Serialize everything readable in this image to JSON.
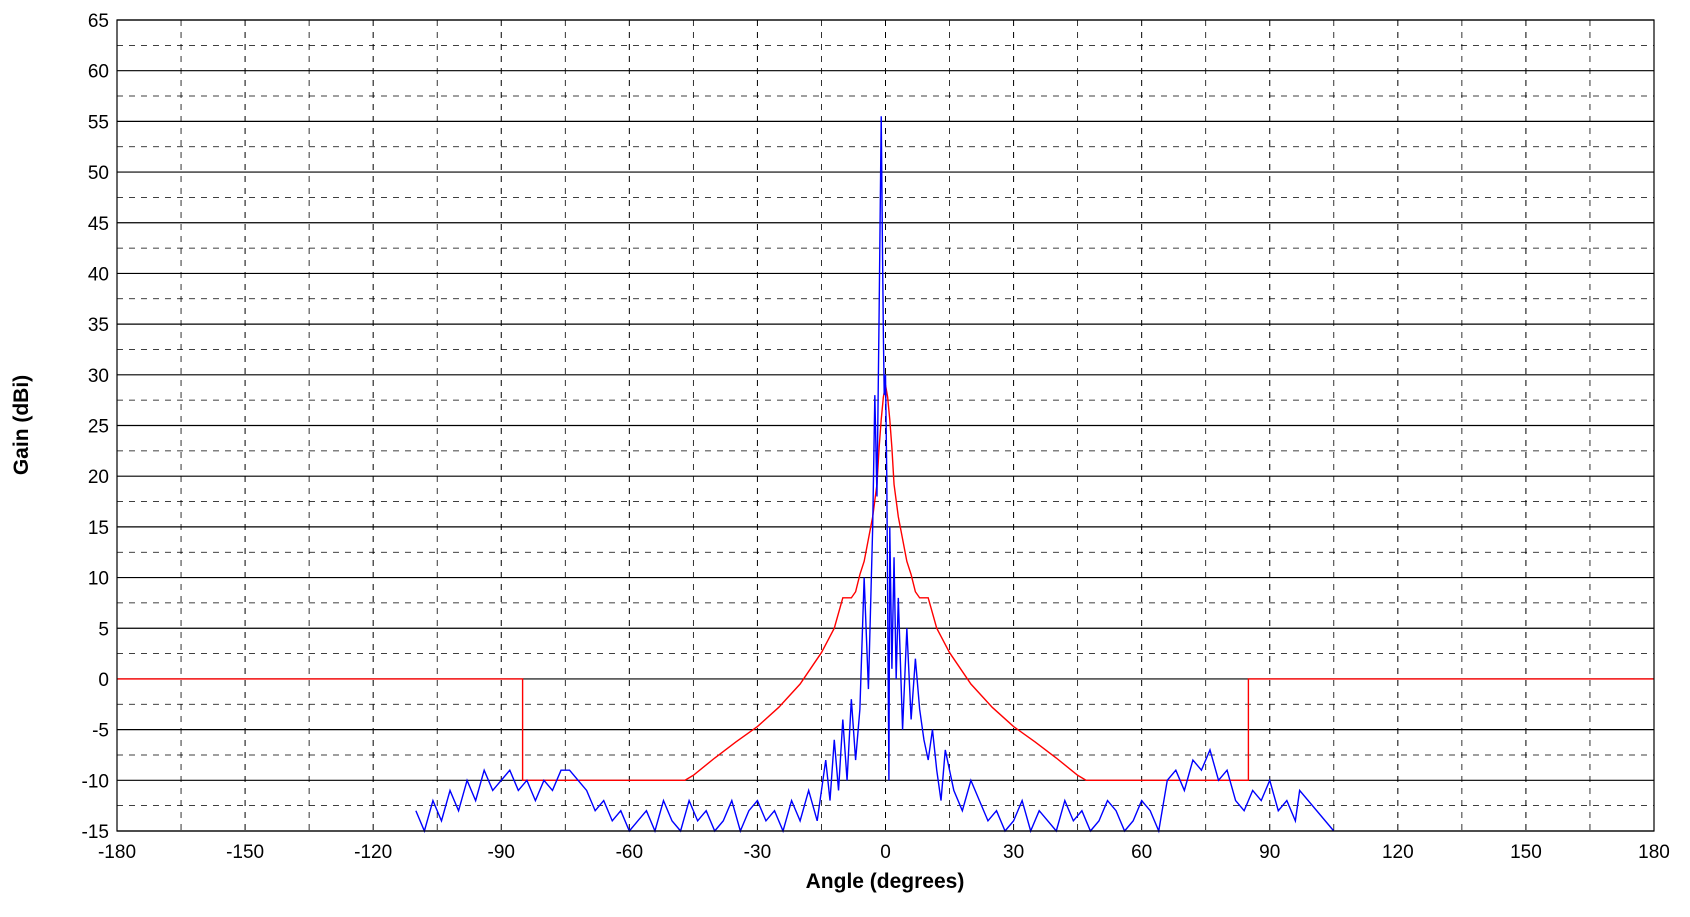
{
  "chart_data": {
    "type": "line",
    "title": "",
    "xlabel": "Angle (degrees)",
    "ylabel": "Gain (dBi)",
    "xlim": [
      -180,
      180
    ],
    "ylim": [
      -15,
      65
    ],
    "xticks": [
      -180,
      -150,
      -120,
      -90,
      -60,
      -30,
      0,
      30,
      60,
      90,
      120,
      150,
      180
    ],
    "yticks": [
      -15,
      -10,
      -5,
      0,
      5,
      10,
      15,
      20,
      25,
      30,
      35,
      40,
      45,
      50,
      55,
      60,
      65
    ],
    "grid": true,
    "series": [
      {
        "color": "#ff0000",
        "x": [
          -180,
          -85,
          -85,
          -80,
          -75,
          -70,
          -65,
          -60,
          -55,
          -50,
          -47,
          -45,
          -40,
          -35,
          -30,
          -25,
          -20,
          -15,
          -12,
          -10,
          -8,
          -7,
          -6,
          -5,
          -4,
          -3,
          -2,
          -1.5,
          -1,
          -0.5,
          0,
          0.5,
          1,
          1.5,
          2,
          3,
          4,
          5,
          6,
          7,
          8,
          10,
          12,
          15,
          20,
          25,
          30,
          35,
          40,
          45,
          47,
          50,
          55,
          60,
          65,
          70,
          75,
          80,
          85,
          85,
          180
        ],
        "y": [
          0,
          0,
          -10,
          -10,
          -10,
          -10,
          -10,
          -10,
          -10,
          -10,
          -10,
          -9.5,
          -7.8,
          -6.2,
          -4.7,
          -2.8,
          -0.5,
          2.6,
          5.0,
          8,
          8,
          8.6,
          10.3,
          11.6,
          13.8,
          16.0,
          19.2,
          22.8,
          25.6,
          27.8,
          29.0,
          27.8,
          25.6,
          22.8,
          19.2,
          16.0,
          13.8,
          11.6,
          10.3,
          8.6,
          8,
          8,
          5.0,
          2.6,
          -0.5,
          -2.8,
          -4.7,
          -6.2,
          -7.8,
          -9.5,
          -10,
          -10,
          -10,
          -10,
          -10,
          -10,
          -10,
          -10,
          -10,
          0,
          0
        ]
      },
      {
        "color": "#0000ff",
        "x": [
          -110,
          -108,
          -106,
          -104,
          -102,
          -100,
          -98,
          -96,
          -94,
          -92,
          -90,
          -88,
          -86,
          -84,
          -82,
          -80,
          -78,
          -76,
          -74,
          -72,
          -70,
          -68,
          -66,
          -64,
          -62,
          -60,
          -58,
          -56,
          -54,
          -52,
          -50,
          -48,
          -46,
          -44,
          -42,
          -40,
          -38,
          -36,
          -34,
          -32,
          -30,
          -28,
          -26,
          -24,
          -22,
          -20,
          -18,
          -16,
          -14,
          -13,
          -12,
          -11,
          -10,
          -9,
          -8,
          -7,
          -6,
          -5,
          -4,
          -3,
          -2.5,
          -2,
          -1.5,
          -1,
          -0.7,
          -0.5,
          -0.3,
          0,
          0.3,
          0.5,
          0.8,
          1,
          1.5,
          2,
          2.5,
          3,
          4,
          5,
          6,
          7,
          8,
          9,
          10,
          11,
          12,
          13,
          14,
          16,
          18,
          20,
          22,
          24,
          26,
          28,
          30,
          32,
          34,
          36,
          38,
          40,
          42,
          44,
          46,
          48,
          50,
          52,
          54,
          56,
          58,
          60,
          62,
          64,
          66,
          68,
          70,
          72,
          74,
          76,
          78,
          80,
          82,
          84,
          86,
          88,
          90,
          92,
          94,
          96,
          97,
          105
        ],
        "y": [
          -13,
          -15,
          -12,
          -14,
          -11,
          -13,
          -10,
          -12,
          -9,
          -11,
          -10,
          -9,
          -11,
          -10,
          -12,
          -10,
          -11,
          -9,
          -9,
          -10,
          -11,
          -13,
          -12,
          -14,
          -13,
          -15,
          -14,
          -13,
          -15,
          -12,
          -14,
          -15,
          -12,
          -14,
          -13,
          -15,
          -14,
          -12,
          -15,
          -13,
          -12,
          -14,
          -13,
          -15,
          -12,
          -14,
          -11,
          -14,
          -8,
          -12,
          -6,
          -11,
          -4,
          -10,
          -2,
          -8,
          -3,
          10,
          -1,
          15,
          28,
          18,
          36,
          55.5,
          42,
          34,
          28,
          30,
          20,
          8,
          -10,
          15,
          1,
          12,
          0,
          8,
          -5,
          5,
          -4,
          2,
          -3,
          -6,
          -8,
          -5,
          -9,
          -12,
          -7,
          -11,
          -13,
          -10,
          -12,
          -14,
          -13,
          -15,
          -14,
          -12,
          -15,
          -13,
          -14,
          -15,
          -12,
          -14,
          -13,
          -15,
          -14,
          -12,
          -13,
          -15,
          -14,
          -12,
          -13,
          -15,
          -10,
          -9,
          -11,
          -8,
          -9,
          -7,
          -10,
          -9,
          -12,
          -13,
          -11,
          -12,
          -10,
          -13,
          -12,
          -14,
          -11,
          -15
        ]
      }
    ]
  }
}
